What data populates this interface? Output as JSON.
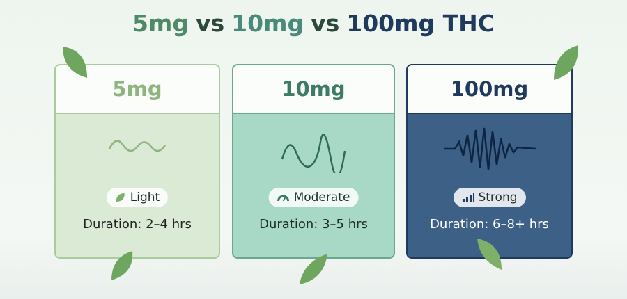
{
  "title": {
    "parts": [
      "5mg",
      "vs",
      "10mg",
      "vs",
      "100mg THC"
    ]
  },
  "cards": [
    {
      "label": "5mg",
      "effect": "Light",
      "duration": "Duration: 2–4 hrs"
    },
    {
      "label": "10mg",
      "effect": "Moderate",
      "duration": "Duration: 3–5 hrs"
    },
    {
      "label": "100mg",
      "effect": "Strong",
      "duration": "Duration: 6–8+ hrs"
    }
  ]
}
